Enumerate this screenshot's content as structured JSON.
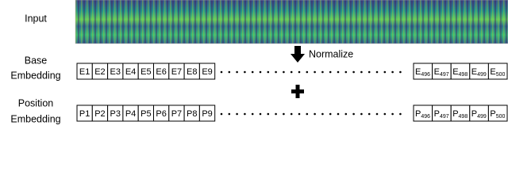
{
  "input_label": "Input",
  "base_label": [
    "Base",
    "Embedding"
  ],
  "position_label": [
    "Position",
    "Embedding"
  ],
  "normalize_label": "Normalize",
  "base_tokens": [
    "E1",
    "E2",
    "E3",
    "E4",
    "E5",
    "E6",
    "E7",
    "E8",
    "E9"
  ],
  "base_tail": [
    {
      "base": "E",
      "sub": "496"
    },
    {
      "base": "E",
      "sub": "497"
    },
    {
      "base": "E",
      "sub": "498"
    },
    {
      "base": "E",
      "sub": "499"
    },
    {
      "base": "E",
      "sub": "500"
    }
  ],
  "position_tokens": [
    "P1",
    "P2",
    "P3",
    "P4",
    "P5",
    "P6",
    "P7",
    "P8",
    "P9"
  ],
  "position_tail": [
    {
      "base": "P",
      "sub": "496"
    },
    {
      "base": "P",
      "sub": "497"
    },
    {
      "base": "P",
      "sub": "498"
    },
    {
      "base": "P",
      "sub": "499"
    },
    {
      "base": "P",
      "sub": "500"
    }
  ]
}
